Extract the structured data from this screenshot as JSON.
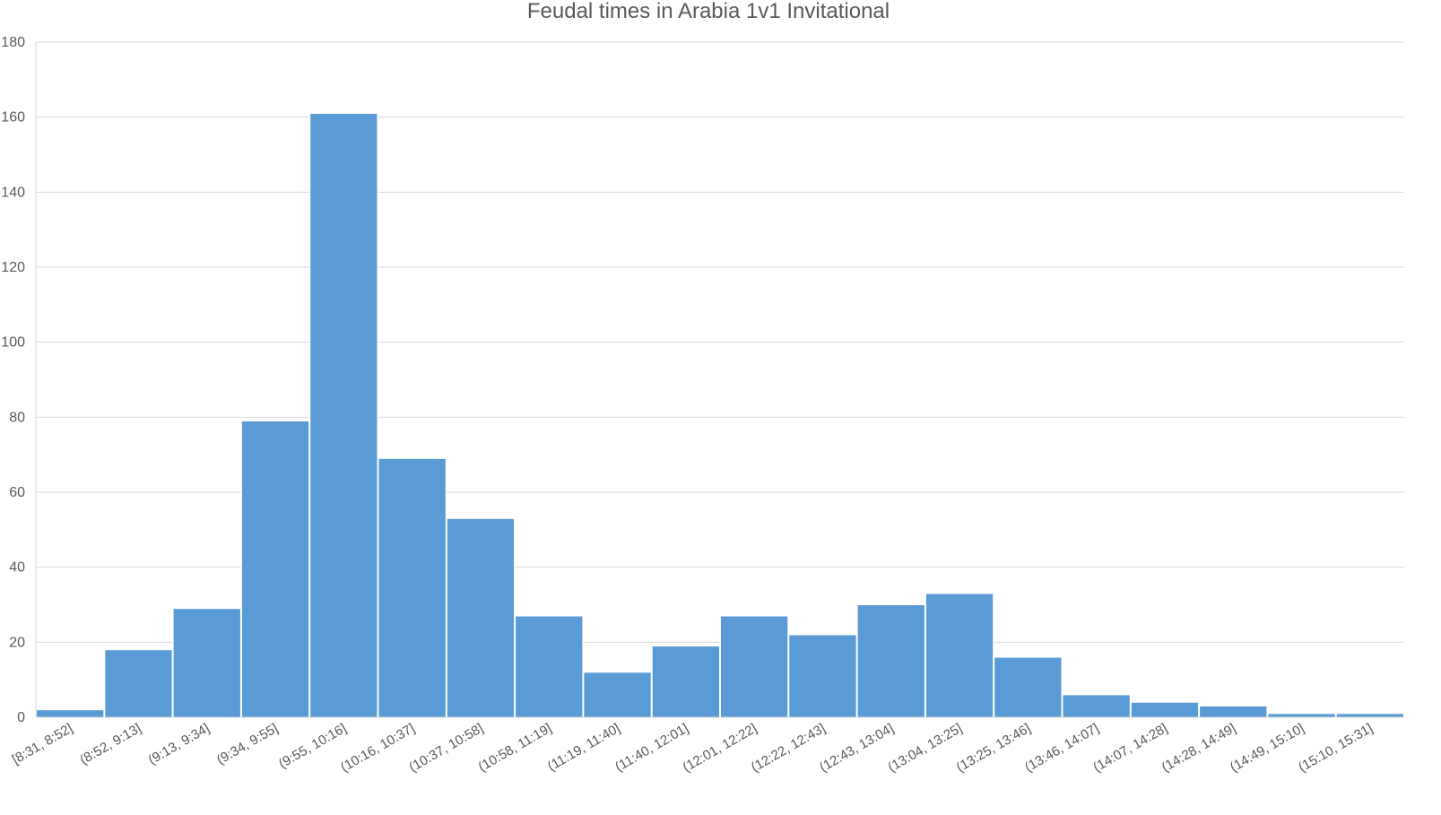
{
  "chart_data": {
    "type": "bar",
    "title": "Feudal times in Arabia 1v1 Invitational",
    "xlabel": "",
    "ylabel": "",
    "ylim": [
      0,
      180
    ],
    "yticks": [
      0,
      20,
      40,
      60,
      80,
      100,
      120,
      140,
      160,
      180
    ],
    "grid": true,
    "legend": "none",
    "bar_color": "#5B9BD5",
    "categories": [
      "[8:31, 8:52]",
      "(8:52, 9:13]",
      "(9:13, 9:34]",
      "(9:34, 9:55]",
      "(9:55, 10:16]",
      "(10:16, 10:37]",
      "(10:37, 10:58]",
      "(10:58, 11:19]",
      "(11:19, 11:40]",
      "(11:40, 12:01]",
      "(12:01, 12:22]",
      "(12:22, 12:43]",
      "(12:43, 13:04]",
      "(13:04, 13:25]",
      "(13:25, 13:46]",
      "(13:46, 14:07]",
      "(14:07, 14:28]",
      "(14:28, 14:49]",
      "(14:49, 15:10]",
      "(15:10, 15:31]"
    ],
    "values": [
      2,
      18,
      29,
      79,
      161,
      69,
      53,
      27,
      12,
      19,
      27,
      22,
      30,
      33,
      16,
      6,
      4,
      3,
      1,
      1
    ]
  }
}
